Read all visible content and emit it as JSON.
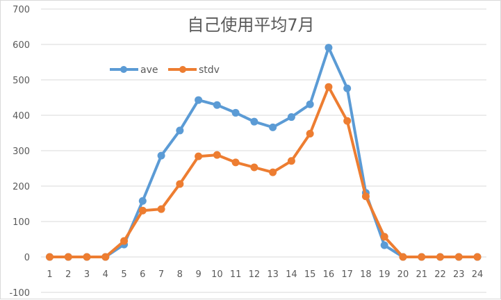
{
  "chart_data": {
    "type": "line",
    "title": "自己使用平均7月",
    "xlabel": "",
    "ylabel": "",
    "categories": [
      "1",
      "2",
      "3",
      "4",
      "5",
      "6",
      "7",
      "8",
      "9",
      "10",
      "11",
      "12",
      "13",
      "14",
      "15",
      "16",
      "17",
      "18",
      "19",
      "20",
      "21",
      "22",
      "23",
      "24"
    ],
    "series": [
      {
        "name": "ave",
        "color": "#5b9bd5",
        "values": [
          0,
          0,
          0,
          0,
          35,
          158,
          286,
          357,
          443,
          429,
          407,
          382,
          366,
          395,
          431,
          591,
          476,
          181,
          33,
          0,
          0,
          0,
          0,
          0
        ]
      },
      {
        "name": "stdv",
        "color": "#ed7d31",
        "values": [
          0,
          0,
          0,
          0,
          45,
          131,
          135,
          206,
          284,
          288,
          267,
          253,
          239,
          271,
          348,
          480,
          384,
          171,
          57,
          0,
          0,
          0,
          0,
          0
        ]
      }
    ],
    "ylim": [
      -100,
      700
    ],
    "yticks": [
      -100,
      0,
      100,
      200,
      300,
      400,
      500,
      600,
      700
    ],
    "grid": true,
    "legend_position": "top-left inside"
  }
}
